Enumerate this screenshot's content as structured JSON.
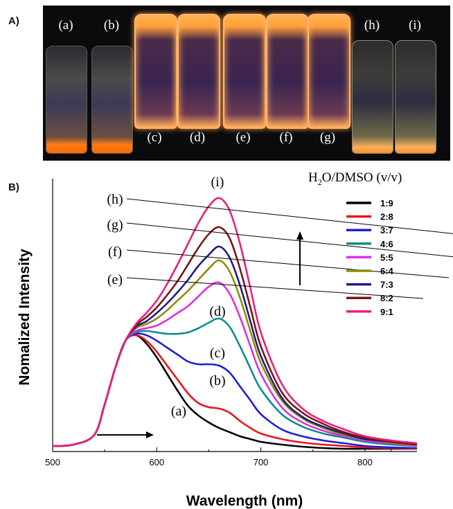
{
  "panel_a": {
    "label": "A)",
    "vials": [
      {
        "label": "(a)",
        "state": "non-emissive"
      },
      {
        "label": "(b)",
        "state": "non-emissive"
      },
      {
        "label": "(c)",
        "state": "emissive"
      },
      {
        "label": "(d)",
        "state": "emissive"
      },
      {
        "label": "(e)",
        "state": "emissive"
      },
      {
        "label": "(f)",
        "state": "emissive"
      },
      {
        "label": "(g)",
        "state": "emissive"
      },
      {
        "label": "(h)",
        "state": "aggregate"
      },
      {
        "label": "(i)",
        "state": "aggregate"
      }
    ]
  },
  "panel_b": {
    "label": "B)"
  },
  "colors": {
    "1:9": "#000000",
    "2:8": "#e8151b",
    "3:7": "#1e1ed6",
    "4:6": "#0e8c8c",
    "5:5": "#e02ee0",
    "6:4": "#8c8c10",
    "7:3": "#1c1c84",
    "8:2": "#7a1414",
    "9:1": "#e8207a"
  },
  "chart_data": {
    "type": "line",
    "xlabel": "Wavelength (nm)",
    "ylabel": "Nomalized Intensity",
    "xlim": [
      500,
      850
    ],
    "xticks": [
      500,
      600,
      700,
      800
    ],
    "y_ticks_shown": false,
    "legend_title": "H2O/DMSO (v/v)",
    "legend_position": "top-right",
    "grid": false,
    "x": [
      500,
      520,
      540,
      550,
      560,
      570,
      580,
      590,
      600,
      610,
      620,
      630,
      640,
      650,
      660,
      670,
      680,
      690,
      700,
      720,
      740,
      760,
      780,
      800,
      825,
      850
    ],
    "series": [
      {
        "name": "1:9",
        "values": [
          0.02,
          0.03,
          0.1,
          0.32,
          0.58,
          0.78,
          0.82,
          0.76,
          0.66,
          0.54,
          0.42,
          0.31,
          0.24,
          0.19,
          0.15,
          0.12,
          0.09,
          0.07,
          0.05,
          0.03,
          0.015,
          0.005,
          0.0,
          0.0,
          0.0,
          0.0
        ]
      },
      {
        "name": "2:8",
        "values": [
          0.02,
          0.03,
          0.1,
          0.32,
          0.58,
          0.78,
          0.82,
          0.78,
          0.7,
          0.6,
          0.5,
          0.4,
          0.33,
          0.3,
          0.29,
          0.26,
          0.2,
          0.15,
          0.11,
          0.07,
          0.045,
          0.03,
          0.02,
          0.01,
          0.005,
          0.0
        ]
      },
      {
        "name": "3:7",
        "values": [
          0.02,
          0.03,
          0.1,
          0.32,
          0.58,
          0.78,
          0.83,
          0.82,
          0.78,
          0.73,
          0.68,
          0.63,
          0.61,
          0.61,
          0.6,
          0.55,
          0.45,
          0.35,
          0.25,
          0.14,
          0.09,
          0.06,
          0.04,
          0.02,
          0.01,
          0.005
        ]
      },
      {
        "name": "4:6",
        "values": [
          0.02,
          0.03,
          0.1,
          0.32,
          0.58,
          0.78,
          0.84,
          0.85,
          0.84,
          0.83,
          0.83,
          0.84,
          0.87,
          0.91,
          0.94,
          0.88,
          0.74,
          0.58,
          0.43,
          0.25,
          0.16,
          0.11,
          0.08,
          0.05,
          0.03,
          0.02
        ]
      },
      {
        "name": "5:5",
        "values": [
          0.02,
          0.03,
          0.1,
          0.32,
          0.58,
          0.78,
          0.85,
          0.87,
          0.89,
          0.93,
          0.98,
          1.03,
          1.1,
          1.17,
          1.2,
          1.12,
          0.95,
          0.74,
          0.54,
          0.3,
          0.19,
          0.13,
          0.09,
          0.06,
          0.04,
          0.02
        ]
      },
      {
        "name": "6:4",
        "values": [
          0.02,
          0.03,
          0.1,
          0.32,
          0.58,
          0.78,
          0.87,
          0.9,
          0.94,
          1.0,
          1.07,
          1.14,
          1.22,
          1.3,
          1.36,
          1.28,
          1.09,
          0.85,
          0.62,
          0.35,
          0.22,
          0.15,
          0.1,
          0.07,
          0.045,
          0.025
        ]
      },
      {
        "name": "7:3",
        "values": [
          0.02,
          0.03,
          0.1,
          0.32,
          0.58,
          0.78,
          0.88,
          0.92,
          0.98,
          1.05,
          1.13,
          1.22,
          1.32,
          1.4,
          1.46,
          1.38,
          1.18,
          0.92,
          0.67,
          0.37,
          0.23,
          0.16,
          0.11,
          0.07,
          0.05,
          0.03
        ]
      },
      {
        "name": "8:2",
        "values": [
          0.02,
          0.03,
          0.1,
          0.32,
          0.58,
          0.78,
          0.89,
          0.95,
          1.02,
          1.11,
          1.21,
          1.33,
          1.45,
          1.55,
          1.6,
          1.52,
          1.3,
          1.02,
          0.74,
          0.41,
          0.26,
          0.18,
          0.12,
          0.08,
          0.05,
          0.03
        ]
      },
      {
        "name": "9:1",
        "values": [
          0.02,
          0.03,
          0.1,
          0.32,
          0.58,
          0.78,
          0.9,
          0.98,
          1.07,
          1.19,
          1.33,
          1.48,
          1.63,
          1.75,
          1.81,
          1.72,
          1.48,
          1.16,
          0.84,
          0.47,
          0.29,
          0.2,
          0.14,
          0.09,
          0.06,
          0.04
        ]
      }
    ],
    "curve_labels": [
      {
        "text": "(a)",
        "series": "1:9"
      },
      {
        "text": "(b)",
        "series": "2:8"
      },
      {
        "text": "(c)",
        "series": "3:7"
      },
      {
        "text": "(d)",
        "series": "4:6"
      },
      {
        "text": "(e)",
        "series": "5:5"
      },
      {
        "text": "(f)",
        "series": "6:4"
      },
      {
        "text": "(g)",
        "series": "7:3"
      },
      {
        "text": "(h)",
        "series": "8:2"
      },
      {
        "text": "(i)",
        "series": "9:1"
      }
    ]
  }
}
